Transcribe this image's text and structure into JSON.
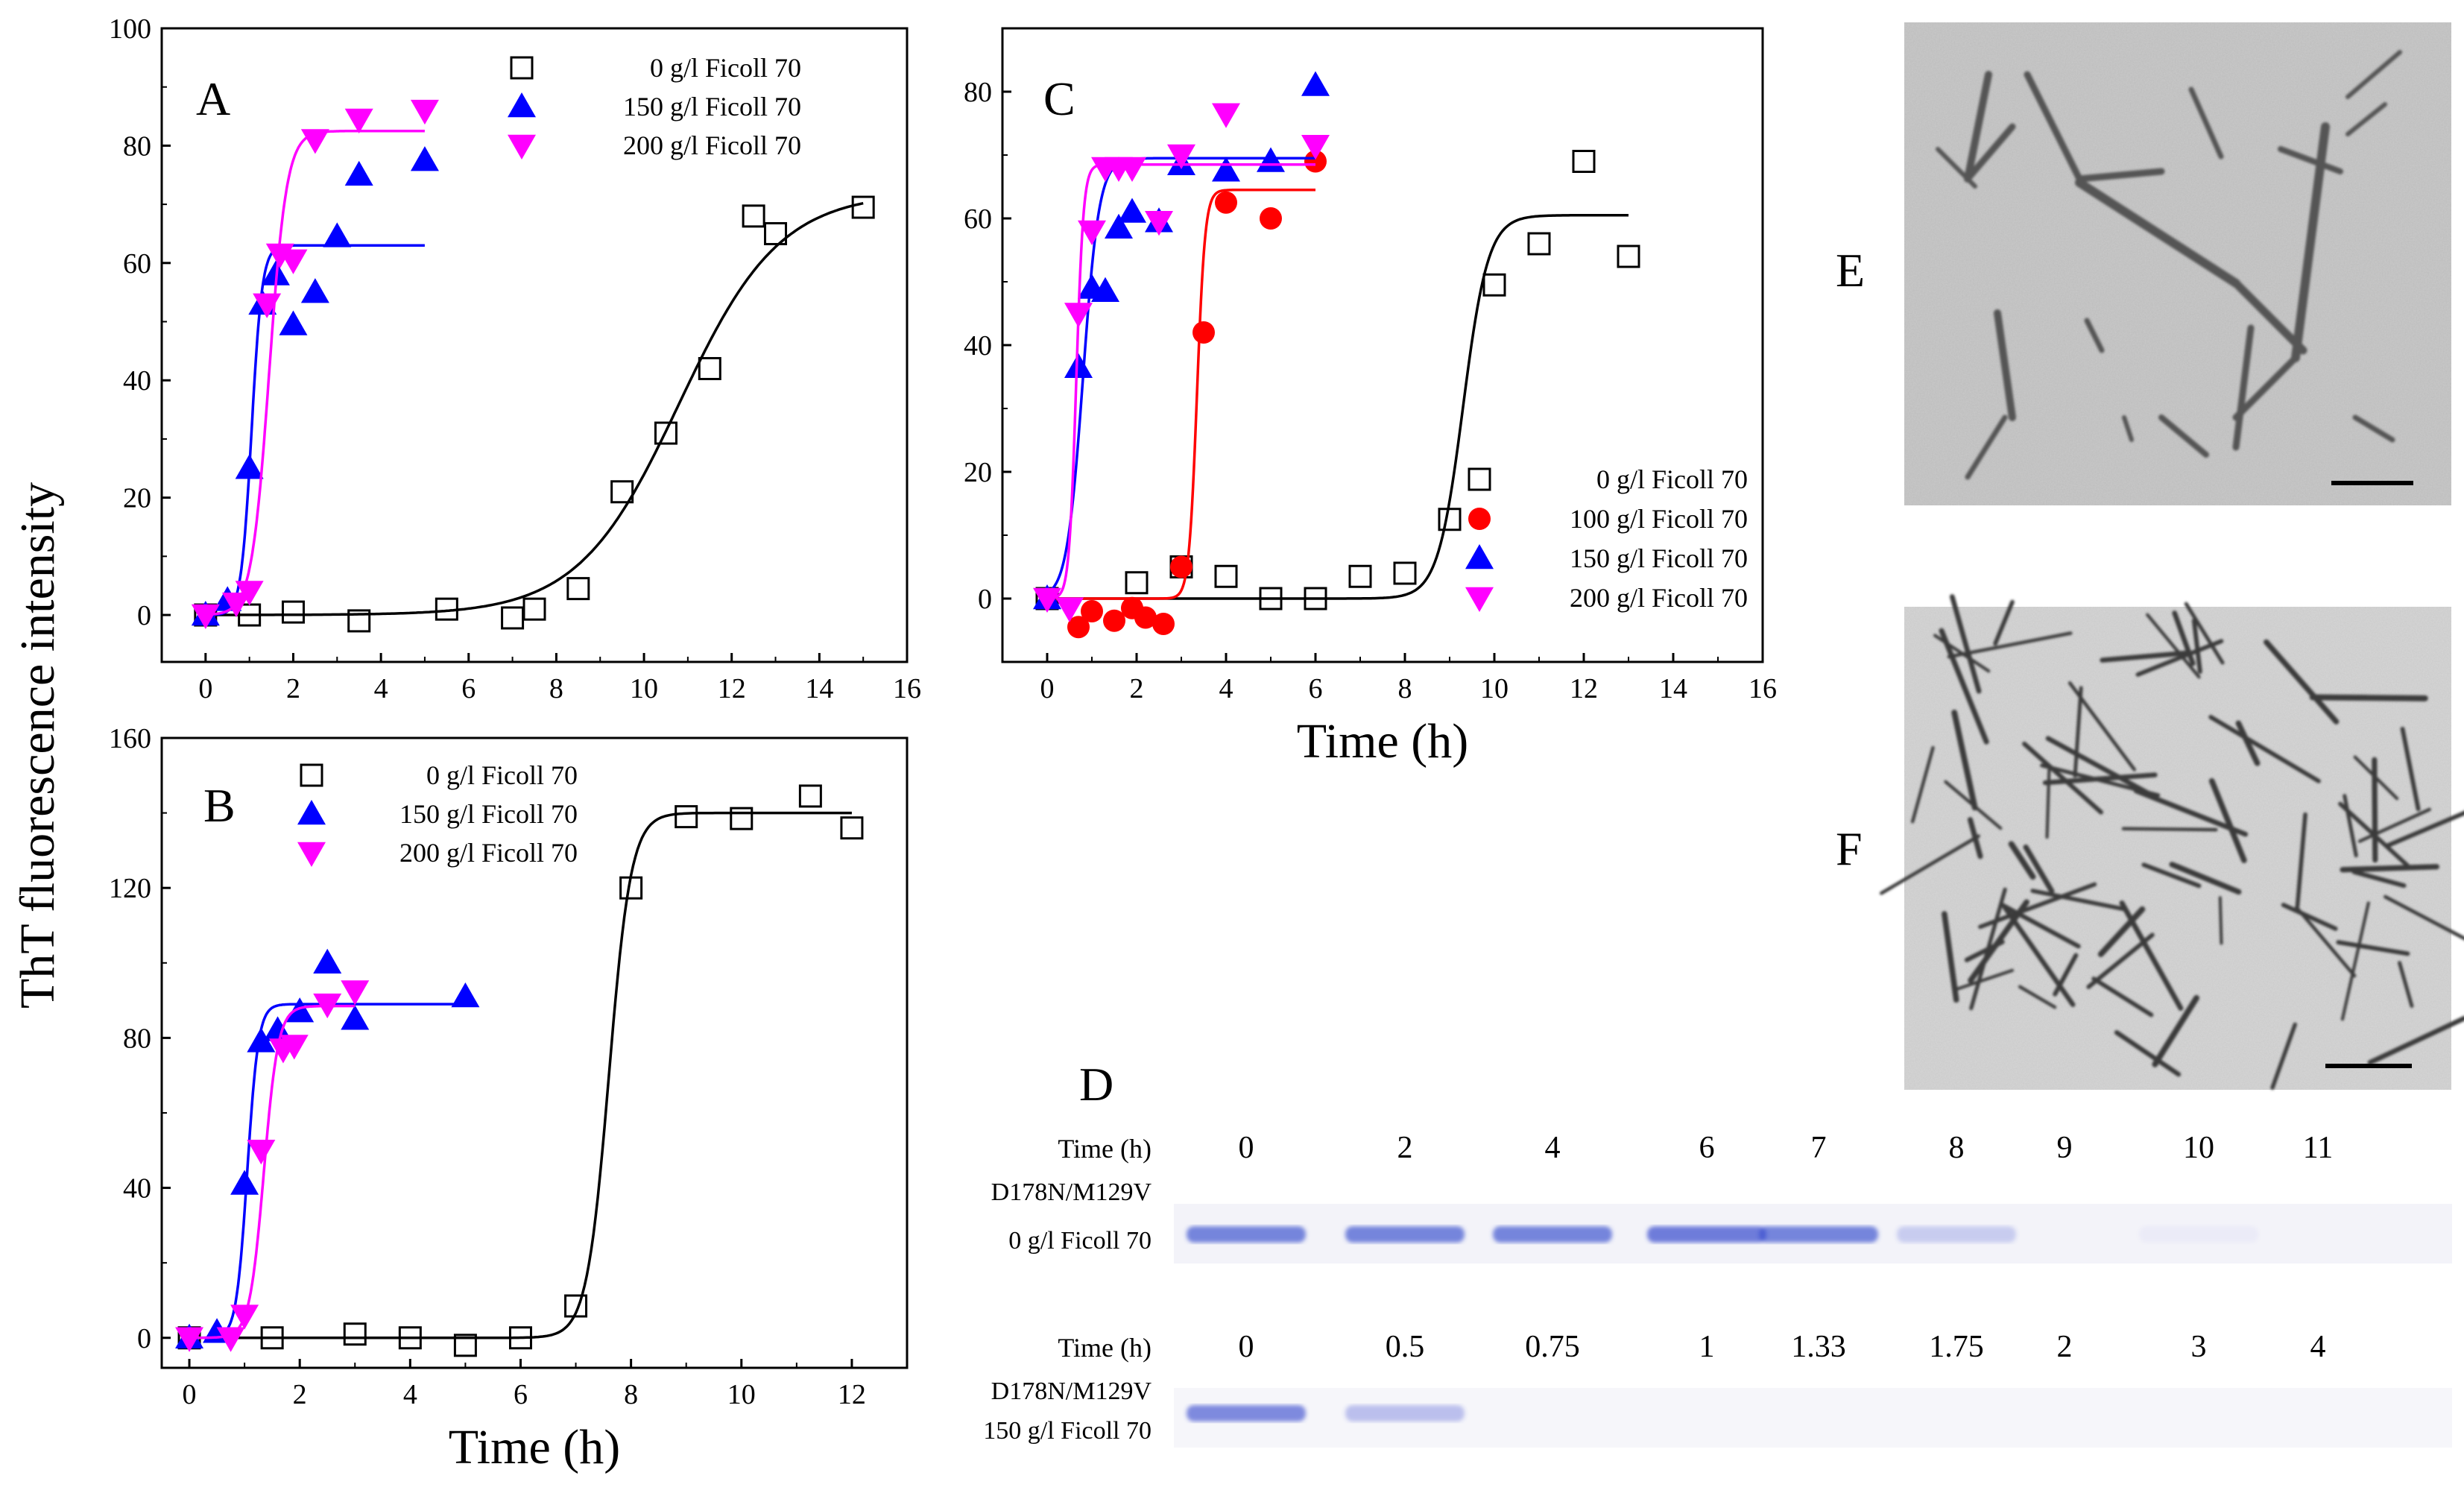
{
  "y_axis_title": "ThT fluorescence intensity",
  "colors": {
    "fc0": "#000000",
    "fc100": "#ff0000",
    "fc150": "#0000ff",
    "fc200": "#ff00ff"
  },
  "chart_data": [
    {
      "panel": "A",
      "type": "scatter",
      "title": "",
      "xlabel": "",
      "ylabel": "ThT fluorescence intensity",
      "xlim": [
        -1,
        16
      ],
      "ylim": [
        -8,
        100
      ],
      "xticks": [
        0,
        2,
        4,
        6,
        8,
        10,
        12,
        14,
        16
      ],
      "yticks": [
        0,
        20,
        40,
        60,
        80,
        100
      ],
      "legend_position": "top-right",
      "series": [
        {
          "name": "0 g/l Ficoll 70",
          "marker": "open-square",
          "color": "#000000",
          "x": [
            0,
            1,
            2,
            3.5,
            5.5,
            7,
            7.5,
            8.5,
            9.5,
            10.5,
            11.5,
            12.5,
            13,
            15
          ],
          "y": [
            0,
            0,
            0.5,
            -1,
            1,
            -0.5,
            1,
            4.5,
            21,
            31,
            42,
            68,
            65,
            69.5
          ],
          "fit": {
            "A": 72,
            "x0": 10.8,
            "k": 1.15,
            "xmin": 0,
            "xmax": 15
          }
        },
        {
          "name": "150 g/l Ficoll 70",
          "marker": "filled-triangle-up",
          "color": "#0000ff",
          "x": [
            0,
            0.5,
            1,
            1.3,
            1.6,
            2,
            2.5,
            3,
            3.5,
            5
          ],
          "y": [
            0,
            2.5,
            25,
            53,
            58,
            49.5,
            55,
            64.5,
            75,
            77.5
          ],
          "fit": {
            "A": 63,
            "x0": 1.05,
            "k": 0.12,
            "xmin": 0,
            "xmax": 5
          }
        },
        {
          "name": "200 g/l Ficoll 70",
          "marker": "filled-triangle-down",
          "color": "#ff00ff",
          "x": [
            0,
            0.7,
            1,
            1.4,
            1.7,
            2,
            2.5,
            3.5,
            5
          ],
          "y": [
            0,
            2,
            4,
            53,
            61.5,
            60.5,
            81,
            84.5,
            86
          ],
          "fit": {
            "A": 82.5,
            "x0": 1.45,
            "k": 0.2,
            "xmin": 0,
            "xmax": 5
          }
        }
      ]
    },
    {
      "panel": "B",
      "type": "scatter",
      "title": "",
      "xlabel": "Time (h)",
      "ylabel": "",
      "xlim": [
        -0.5,
        13
      ],
      "ylim": [
        -8,
        160
      ],
      "xticks": [
        0,
        2,
        4,
        6,
        8,
        10,
        12
      ],
      "yticks": [
        0,
        40,
        80,
        120,
        160
      ],
      "legend_position": "top-left",
      "series": [
        {
          "name": "0 g/l Ficoll 70",
          "marker": "open-square",
          "color": "#000000",
          "x": [
            0,
            1.5,
            3,
            4,
            5,
            6,
            7,
            8,
            9,
            10,
            11.25,
            12
          ],
          "y": [
            0,
            0,
            1,
            0,
            -2,
            0,
            8.5,
            120,
            139,
            138.5,
            144.5,
            136
          ],
          "fit": {
            "A": 140,
            "x0": 7.6,
            "k": 0.2,
            "xmin": 0,
            "xmax": 12
          }
        },
        {
          "name": "150 g/l Ficoll 70",
          "marker": "filled-triangle-up",
          "color": "#0000ff",
          "x": [
            0,
            0.5,
            1,
            1.3,
            1.6,
            2,
            2.5,
            3,
            5
          ],
          "y": [
            0,
            1.5,
            41,
            79,
            82,
            87,
            100,
            85,
            91
          ],
          "fit": {
            "A": 89,
            "x0": 1.05,
            "k": 0.1,
            "xmin": 0,
            "xmax": 5
          }
        },
        {
          "name": "200 g/l Ficoll 70",
          "marker": "filled-triangle-down",
          "color": "#ff00ff",
          "x": [
            0,
            0.75,
            1,
            1.3,
            1.7,
            1.9,
            2.5,
            3
          ],
          "y": [
            0,
            0,
            6,
            50,
            77,
            78,
            89,
            92.5
          ],
          "fit": {
            "A": 88.5,
            "x0": 1.35,
            "k": 0.13,
            "xmin": 0,
            "xmax": 3
          }
        }
      ]
    },
    {
      "panel": "C",
      "type": "scatter",
      "title": "",
      "xlabel": "Time (h)",
      "ylabel": "",
      "xlim": [
        -1,
        16
      ],
      "ylim": [
        -10,
        90
      ],
      "xticks": [
        0,
        2,
        4,
        6,
        8,
        10,
        12,
        14,
        16
      ],
      "yticks": [
        0,
        20,
        40,
        60,
        80
      ],
      "legend_position": "bottom-right",
      "series": [
        {
          "name": "0 g/l Ficoll 70",
          "marker": "open-square",
          "color": "#000000",
          "x": [
            0,
            2,
            3,
            4,
            5,
            6,
            7,
            8,
            9,
            10,
            11,
            12,
            13
          ],
          "y": [
            0,
            2.5,
            5,
            3.5,
            0,
            0,
            3.5,
            4,
            12.5,
            49.5,
            56,
            69,
            54
          ],
          "fit": {
            "A": 60.5,
            "x0": 9.3,
            "k": 0.28,
            "xmin": 0,
            "xmax": 13
          }
        },
        {
          "name": "100 g/l Ficoll 70",
          "marker": "filled-circle",
          "color": "#ff0000",
          "x": [
            0.7,
            1,
            1.5,
            1.9,
            2.2,
            2.6,
            3,
            3.5,
            4,
            5,
            6
          ],
          "y": [
            -4.5,
            -2,
            -3.5,
            -1.5,
            -3,
            -4,
            5,
            42,
            62.5,
            60,
            69
          ],
          "fit": {
            "A": 64.5,
            "x0": 3.35,
            "k": 0.09,
            "xmin": 0,
            "xmax": 6
          }
        },
        {
          "name": "150 g/l Ficoll 70",
          "marker": "filled-triangle-up",
          "color": "#0000ff",
          "x": [
            0,
            0.7,
            1,
            1.3,
            1.6,
            1.9,
            2.5,
            3,
            4,
            5,
            6
          ],
          "y": [
            0,
            36.5,
            49,
            48.5,
            58.5,
            61,
            59.5,
            68.5,
            67.5,
            69,
            81
          ],
          "fit": {
            "A": 69.5,
            "x0": 0.8,
            "k": 0.18,
            "xmin": 0,
            "xmax": 6
          }
        },
        {
          "name": "200 g/l Ficoll 70",
          "marker": "filled-triangle-down",
          "color": "#ff00ff",
          "x": [
            0,
            0.5,
            0.7,
            1,
            1.3,
            1.6,
            1.9,
            2.5,
            3,
            4,
            6
          ],
          "y": [
            0,
            -1.5,
            45,
            58,
            68,
            68,
            68,
            59.5,
            70,
            76.5,
            71.5
          ],
          "fit": {
            "A": 68.5,
            "x0": 0.65,
            "k": 0.08,
            "xmin": 0,
            "xmax": 6
          }
        }
      ]
    }
  ],
  "panel_letters": {
    "A": "A",
    "B": "B",
    "C": "C",
    "D": "D",
    "E": "E",
    "F": "F"
  },
  "gel": {
    "top": {
      "time_label": "Time (h)",
      "times": [
        "0",
        "2",
        "4",
        "6",
        "7",
        "8",
        "9",
        "10",
        "11"
      ],
      "sample_line1": "D178N/M129V",
      "sample_line2": "0 g/l Ficoll 70",
      "band_intensity": [
        0.85,
        0.85,
        0.85,
        0.9,
        0.85,
        0.3,
        0,
        0.04,
        0
      ]
    },
    "bottom": {
      "time_label": "Time (h)",
      "times": [
        "0",
        "0.5",
        "0.75",
        "1",
        "1.33",
        "1.75",
        "2",
        "3",
        "4"
      ],
      "sample_line1": "D178N/M129V",
      "sample_line2": "150 g/l Ficoll 70",
      "band_intensity": [
        0.8,
        0.4,
        0,
        0,
        0,
        0,
        0,
        0,
        0
      ]
    }
  }
}
